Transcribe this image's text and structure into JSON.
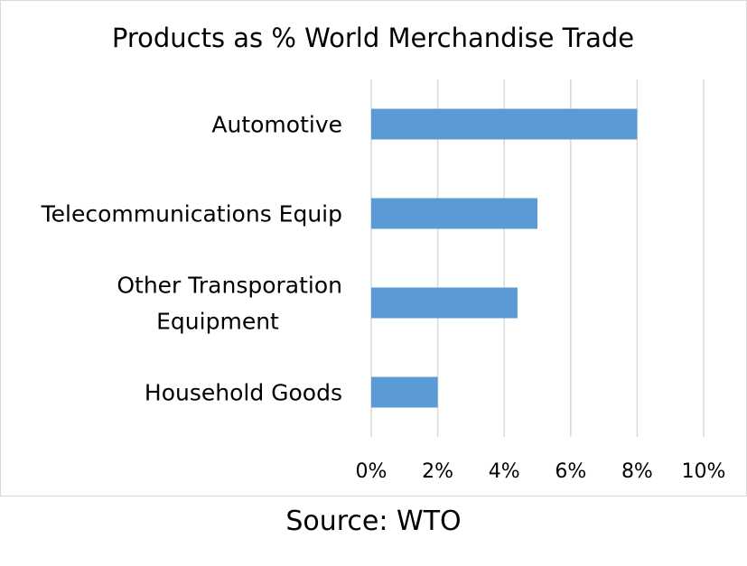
{
  "chart_data": {
    "type": "bar",
    "orientation": "horizontal",
    "title": "Products as % World Merchandise Trade",
    "categories": [
      [
        "Automotive"
      ],
      [
        "Telecommunications Equip"
      ],
      [
        "Other Transporation",
        "Equipment"
      ],
      [
        "Household Goods"
      ]
    ],
    "values": [
      8.0,
      5.0,
      4.4,
      2.0
    ],
    "xlim": [
      0,
      10
    ],
    "x_ticks": [
      "0%",
      "2%",
      "4%",
      "6%",
      "8%",
      "10%"
    ],
    "x_tick_values": [
      0,
      2,
      4,
      6,
      8,
      10
    ],
    "grid": true,
    "bar_color": "#5b9bd5",
    "gridline_color": "#d9d9d9"
  },
  "caption": "Source: WTO"
}
